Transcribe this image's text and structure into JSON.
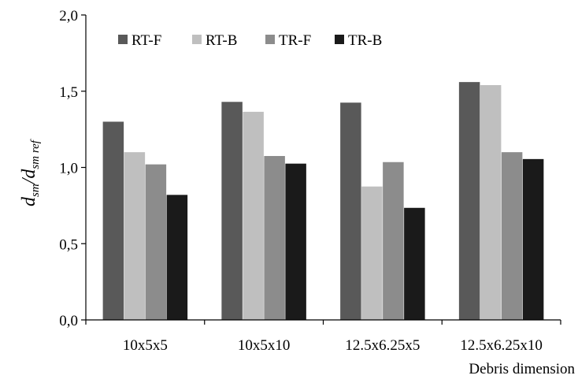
{
  "chart_data": {
    "type": "bar",
    "categories": [
      "10x5x5",
      "10x5x10",
      "12.5x6.25x5",
      "12.5x6.25x10"
    ],
    "series": [
      {
        "name": "RT-F",
        "color": "#595959",
        "values": [
          1.3,
          1.43,
          1.425,
          1.56
        ]
      },
      {
        "name": "RT-B",
        "color": "#bfbfbf",
        "values": [
          1.1,
          1.365,
          0.875,
          1.54
        ]
      },
      {
        "name": "TR-F",
        "color": "#8c8c8c",
        "values": [
          1.02,
          1.075,
          1.035,
          1.1
        ]
      },
      {
        "name": "TR-B",
        "color": "#1a1a1a",
        "values": [
          0.82,
          1.025,
          0.735,
          1.055
        ]
      }
    ],
    "xlabel": "Debris dimension",
    "ylabel": {
      "base1": "d",
      "sub1": "sm",
      "sep": "/",
      "base2": "d",
      "sub2": "sm ref"
    },
    "ylim": [
      0,
      2
    ],
    "yticks": [
      0,
      0.5,
      1,
      1.5,
      2
    ],
    "ytick_labels": [
      "0,0",
      "0,5",
      "1,0",
      "1,5",
      "2,0"
    ],
    "grid": false,
    "legend_position": "top-left"
  }
}
